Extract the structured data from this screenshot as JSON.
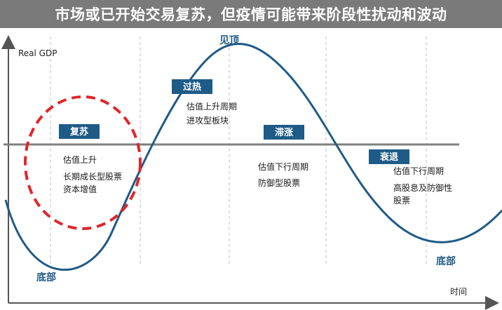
{
  "title": "市场或已开始交易复苏，但疫情可能带来阶段性扰动和波动",
  "y_axis_label": "Real GDP",
  "x_axis_label": "时间",
  "peak_label": "见顶",
  "trough_labels": [
    "底部",
    "底部"
  ],
  "phases": [
    {
      "name": "复苏",
      "lines": [
        "估值上升",
        "长期成长型股票",
        "资本增值"
      ]
    },
    {
      "name": "过热",
      "lines": [
        "估值上升周期",
        "进攻型板块"
      ]
    },
    {
      "name": "滞涨",
      "lines": [
        "估值下行周期",
        "防御型股票"
      ]
    },
    {
      "name": "衰退",
      "lines": [
        "估值下行周期",
        "高股息及防御性",
        "股票"
      ]
    }
  ],
  "colors": {
    "title_bar": "#7a7a7a",
    "curve": "#1f5b87",
    "badge": "#1f5b87",
    "trend_line": "#7f7f7f",
    "highlight_circle": "#e0262b",
    "dashed_lines": "#bdbdbd",
    "axis": "#555555"
  }
}
